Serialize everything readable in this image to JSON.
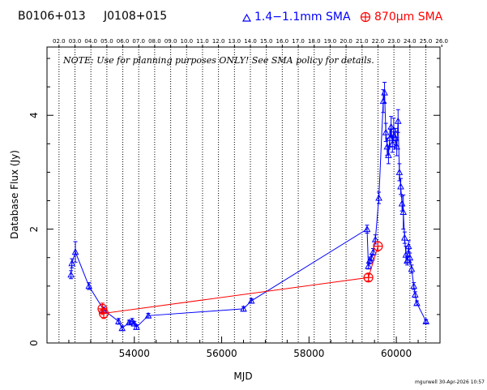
{
  "chart_data": {
    "type": "scatter",
    "source_names": [
      "B0106+013",
      "J0108+015"
    ],
    "note": "NOTE: Use for planning purposes ONLY! See SMA policy for details.",
    "xlabel": "MJD",
    "ylabel": "Database Flux (Jy)",
    "xlim": [
      52000,
      61000
    ],
    "ylim": [
      0,
      5.2
    ],
    "x_ticks": [
      {
        "value": 54000,
        "label": "54000"
      },
      {
        "value": 56000,
        "label": "56000"
      },
      {
        "value": 58000,
        "label": "58000"
      },
      {
        "value": 60000,
        "label": "60000"
      }
    ],
    "y_ticks": [
      {
        "value": 0,
        "label": "0"
      },
      {
        "value": 2,
        "label": "2"
      },
      {
        "value": 4,
        "label": "4"
      }
    ],
    "top_axis_labels": [
      "02.0",
      "03.0",
      "04.0",
      "05.0",
      "06.0",
      "07.0",
      "08.0",
      "09.0",
      "10.0",
      "11.0",
      "12.0",
      "13.0",
      "14.0",
      "15.0",
      "16.0",
      "17.0",
      "18.0",
      "19.0",
      "20.0",
      "21.0",
      "22.0",
      "23.0",
      "24.0",
      "25.0",
      "26.0"
    ],
    "year_gridlines": [
      52275,
      52640,
      53005,
      53371,
      53736,
      54101,
      54466,
      54832,
      55197,
      55562,
      55927,
      56293,
      56658,
      57023,
      57388,
      57754,
      58119,
      58484,
      58849,
      59215,
      59580,
      59945,
      60310,
      60676,
      61041
    ],
    "grid": "vertical dotted lines at each year mark",
    "credit": "mgurwell 30-Apr-2026 10:57",
    "series": [
      {
        "name": "1.4−1.1mm SMA",
        "color": "#0000ff",
        "marker": "triangle",
        "points": [
          {
            "x": 52550,
            "y": 1.2,
            "err": 0.07
          },
          {
            "x": 52570,
            "y": 1.4,
            "err": 0.08
          },
          {
            "x": 52650,
            "y": 1.6,
            "err": 0.18
          },
          {
            "x": 52960,
            "y": 1.0,
            "err": 0.06
          },
          {
            "x": 53300,
            "y": 0.58,
            "err": 0.05
          },
          {
            "x": 53640,
            "y": 0.38,
            "err": 0.05
          },
          {
            "x": 53720,
            "y": 0.26,
            "err": 0.04
          },
          {
            "x": 53880,
            "y": 0.36,
            "err": 0.04
          },
          {
            "x": 53950,
            "y": 0.38,
            "err": 0.05
          },
          {
            "x": 54000,
            "y": 0.34,
            "err": 0.04
          },
          {
            "x": 54050,
            "y": 0.28,
            "err": 0.04
          },
          {
            "x": 54320,
            "y": 0.48,
            "err": 0.04
          },
          {
            "x": 56500,
            "y": 0.6,
            "err": 0.04
          },
          {
            "x": 56680,
            "y": 0.74,
            "err": 0.04
          },
          {
            "x": 59330,
            "y": 2.0,
            "err": 0.07
          },
          {
            "x": 59360,
            "y": 1.35,
            "err": 0.05
          },
          {
            "x": 59390,
            "y": 1.45,
            "err": 0.06
          },
          {
            "x": 59430,
            "y": 1.5,
            "err": 0.06
          },
          {
            "x": 59470,
            "y": 1.6,
            "err": 0.06
          },
          {
            "x": 59520,
            "y": 1.82,
            "err": 0.08
          },
          {
            "x": 59600,
            "y": 2.55,
            "err": 0.1
          },
          {
            "x": 59700,
            "y": 4.25,
            "err": 0.2
          },
          {
            "x": 59730,
            "y": 4.4,
            "err": 0.18
          },
          {
            "x": 59760,
            "y": 3.7,
            "err": 0.16
          },
          {
            "x": 59790,
            "y": 3.45,
            "err": 0.15
          },
          {
            "x": 59820,
            "y": 3.3,
            "err": 0.15
          },
          {
            "x": 59850,
            "y": 3.6,
            "err": 0.16
          },
          {
            "x": 59880,
            "y": 3.8,
            "err": 0.18
          },
          {
            "x": 59910,
            "y": 3.5,
            "err": 0.15
          },
          {
            "x": 59940,
            "y": 3.75,
            "err": 0.2
          },
          {
            "x": 59980,
            "y": 3.6,
            "err": 0.17
          },
          {
            "x": 60010,
            "y": 3.45,
            "err": 0.16
          },
          {
            "x": 60040,
            "y": 3.9,
            "err": 0.2
          },
          {
            "x": 60070,
            "y": 3.0,
            "err": 0.15
          },
          {
            "x": 60100,
            "y": 2.75,
            "err": 0.14
          },
          {
            "x": 60130,
            "y": 2.45,
            "err": 0.13
          },
          {
            "x": 60160,
            "y": 2.3,
            "err": 0.3
          },
          {
            "x": 60190,
            "y": 1.85,
            "err": 0.1
          },
          {
            "x": 60220,
            "y": 1.55,
            "err": 0.15
          },
          {
            "x": 60250,
            "y": 1.45,
            "err": 0.08
          },
          {
            "x": 60280,
            "y": 1.7,
            "err": 0.1
          },
          {
            "x": 60310,
            "y": 1.5,
            "err": 0.08
          },
          {
            "x": 60350,
            "y": 1.3,
            "err": 0.07
          },
          {
            "x": 60400,
            "y": 1.0,
            "err": 0.06
          },
          {
            "x": 60430,
            "y": 0.85,
            "err": 0.05
          },
          {
            "x": 60470,
            "y": 0.7,
            "err": 0.04
          },
          {
            "x": 60680,
            "y": 0.38,
            "err": 0.03
          }
        ]
      },
      {
        "name": "870μm SMA",
        "color": "#ff0000",
        "marker": "circle-plus",
        "points": [
          {
            "x": 53270,
            "y": 0.6,
            "err": 0.1
          },
          {
            "x": 53300,
            "y": 0.52,
            "err": 0.09
          },
          {
            "x": 59360,
            "y": 1.15,
            "err": 0.06
          },
          {
            "x": 59580,
            "y": 1.7,
            "err": 0.08
          }
        ]
      }
    ]
  }
}
